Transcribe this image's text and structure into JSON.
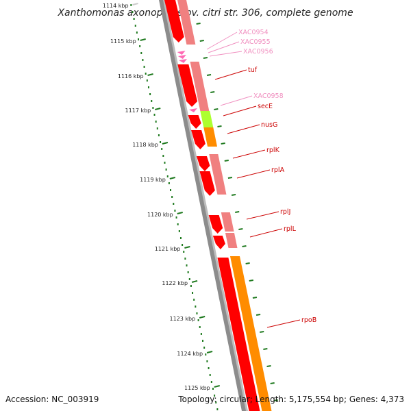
{
  "title": "Xanthomonas axonopodis pv. citri str. 306, complete genome",
  "footer": {
    "accession": "Accession: NC_003919",
    "summary": "Topology: circular; Length: 5,175,554 bp; Genes: 4,373"
  },
  "colors": {
    "backbone": "#8c8c8c",
    "tick_major": "#1f7a1f",
    "cds_red": "#ff0000",
    "cds_pink": "#f08080",
    "rna_pink": "#ff69b4",
    "cds_orange": "#ff8c00",
    "cds_green": "#adff2f",
    "label_red": "#cc0000",
    "label_pink": "#f090c0"
  },
  "scale": {
    "labels": [
      "1114 kbp",
      "1115 kbp",
      "1116 kbp",
      "1117 kbp",
      "1118 kbp",
      "1119 kbp",
      "1120 kbp",
      "1121 kbp",
      "1122 kbp",
      "1123 kbp",
      "1124 kbp",
      "1125 kbp"
    ]
  },
  "gene_labels": [
    {
      "text": "XAC0954",
      "color": "pink"
    },
    {
      "text": "XAC0955",
      "color": "pink"
    },
    {
      "text": "XAC0956",
      "color": "pink"
    },
    {
      "text": "tuf",
      "color": "red"
    },
    {
      "text": "XAC0958",
      "color": "pink"
    },
    {
      "text": "secE",
      "color": "red"
    },
    {
      "text": "nusG",
      "color": "red"
    },
    {
      "text": "rplK",
      "color": "red"
    },
    {
      "text": "rplA",
      "color": "red"
    },
    {
      "text": "rplJ",
      "color": "red"
    },
    {
      "text": "rplL",
      "color": "red"
    },
    {
      "text": "rpoB",
      "color": "red"
    }
  ]
}
